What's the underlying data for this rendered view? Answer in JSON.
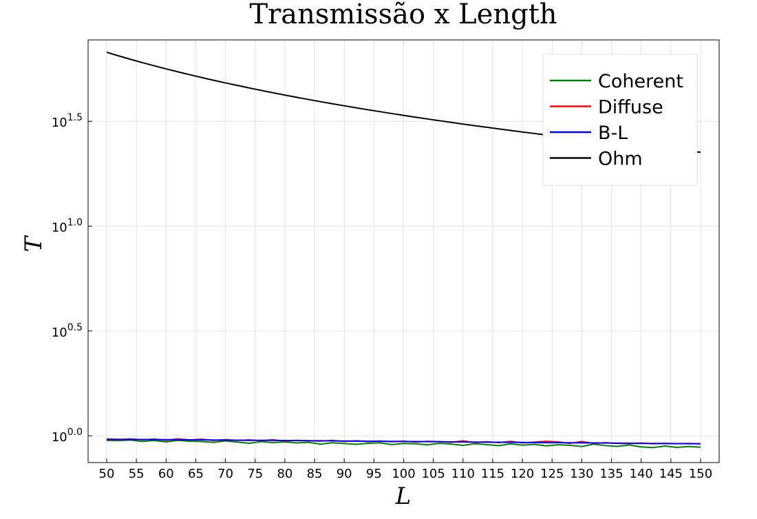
{
  "chart_data": {
    "type": "line",
    "title": "Transmissão x Length",
    "xlabel": "L",
    "ylabel": "T",
    "x": [
      50,
      52,
      54,
      56,
      58,
      60,
      62,
      64,
      66,
      68,
      70,
      72,
      74,
      76,
      78,
      80,
      82,
      84,
      86,
      88,
      90,
      92,
      94,
      96,
      98,
      100,
      102,
      104,
      106,
      108,
      110,
      112,
      114,
      116,
      118,
      120,
      122,
      124,
      126,
      128,
      130,
      132,
      134,
      136,
      138,
      140,
      142,
      144,
      146,
      148,
      150
    ],
    "series": [
      {
        "name": "Coherent",
        "color": "#008000",
        "values": [
          0.95,
          0.948,
          0.953,
          0.94,
          0.949,
          0.935,
          0.951,
          0.942,
          0.938,
          0.93,
          0.945,
          0.933,
          0.921,
          0.937,
          0.928,
          0.935,
          0.924,
          0.93,
          0.912,
          0.926,
          0.918,
          0.91,
          0.921,
          0.925,
          0.908,
          0.919,
          0.915,
          0.905,
          0.92,
          0.913,
          0.9,
          0.916,
          0.908,
          0.897,
          0.915,
          0.902,
          0.91,
          0.895,
          0.906,
          0.901,
          0.888,
          0.912,
          0.897,
          0.89,
          0.903,
          0.885,
          0.878,
          0.893,
          0.88,
          0.889,
          0.882
        ]
      },
      {
        "name": "Diffuse",
        "color": "#ff0000",
        "values": [
          0.96,
          0.958,
          0.965,
          0.957,
          0.963,
          0.952,
          0.966,
          0.955,
          0.962,
          0.95,
          0.958,
          0.951,
          0.955,
          0.948,
          0.957,
          0.944,
          0.951,
          0.946,
          0.943,
          0.95,
          0.939,
          0.946,
          0.938,
          0.944,
          0.936,
          0.943,
          0.933,
          0.941,
          0.938,
          0.931,
          0.945,
          0.929,
          0.936,
          0.928,
          0.94,
          0.925,
          0.932,
          0.941,
          0.935,
          0.92,
          0.938,
          0.921,
          0.927,
          0.919,
          0.918,
          0.923,
          0.915,
          0.92,
          0.917,
          0.919,
          0.915
        ]
      },
      {
        "name": "B-L",
        "color": "#0000ff",
        "values": [
          0.963,
          0.962,
          0.961,
          0.96,
          0.959,
          0.958,
          0.957,
          0.956,
          0.955,
          0.954,
          0.953,
          0.952,
          0.951,
          0.951,
          0.95,
          0.949,
          0.948,
          0.947,
          0.946,
          0.945,
          0.944,
          0.943,
          0.942,
          0.941,
          0.94,
          0.939,
          0.938,
          0.937,
          0.936,
          0.935,
          0.934,
          0.933,
          0.932,
          0.931,
          0.93,
          0.929,
          0.928,
          0.927,
          0.927,
          0.926,
          0.925,
          0.924,
          0.923,
          0.922,
          0.921,
          0.92,
          0.919,
          0.918,
          0.917,
          0.916,
          0.915
        ]
      },
      {
        "name": "Ohm",
        "color": "#000000",
        "values": [
          67.5,
          64.9,
          62.5,
          60.27,
          58.19,
          56.25,
          54.44,
          52.73,
          51.14,
          49.63,
          48.21,
          46.88,
          45.61,
          44.41,
          43.27,
          42.19,
          41.16,
          40.18,
          39.24,
          38.35,
          37.5,
          36.68,
          35.9,
          35.16,
          34.44,
          33.75,
          33.09,
          32.45,
          31.84,
          31.25,
          30.68,
          30.13,
          29.61,
          29.09,
          28.6,
          28.13,
          27.66,
          27.22,
          26.79,
          26.37,
          25.96,
          25.57,
          25.19,
          24.82,
          24.46,
          24.11,
          23.77,
          23.44,
          23.12,
          22.8,
          22.5
        ]
      }
    ],
    "xlim": [
      46.87,
      153.13
    ],
    "xticks": [
      50,
      55,
      60,
      65,
      70,
      75,
      80,
      85,
      90,
      95,
      100,
      105,
      110,
      115,
      120,
      125,
      130,
      135,
      140,
      145,
      150
    ],
    "ylim": [
      0.745,
      77.3
    ],
    "ylog": true,
    "yticks": [
      {
        "value": 1,
        "label": "10^0.0"
      },
      {
        "value": 3.1623,
        "label": "10^0.5"
      },
      {
        "value": 10,
        "label": "10^1.0"
      },
      {
        "value": 31.623,
        "label": "10^1.5"
      }
    ],
    "grid": true,
    "legend": "top-right"
  }
}
